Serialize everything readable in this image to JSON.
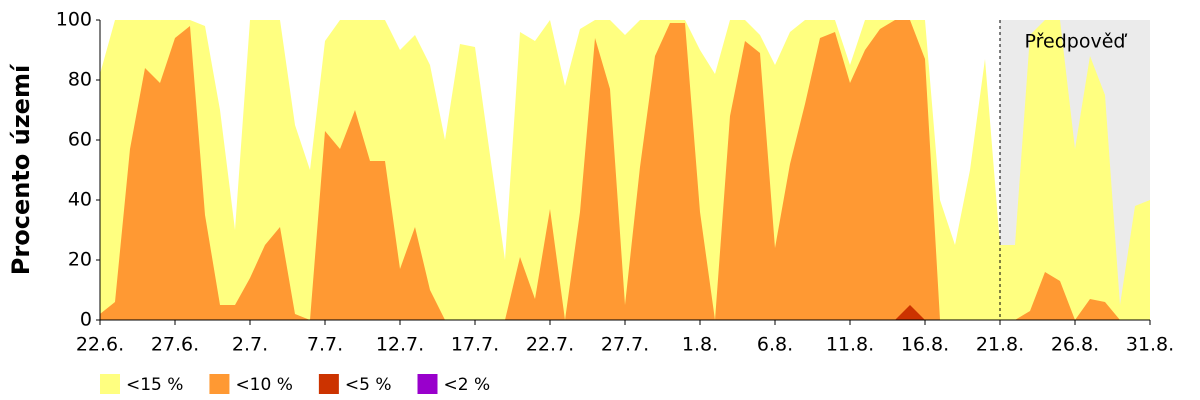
{
  "chart_data": {
    "type": "area",
    "y_label": "Procento území",
    "categories": [
      "22.6.",
      null,
      null,
      null,
      null,
      "27.6.",
      null,
      null,
      null,
      null,
      "2.7.",
      null,
      null,
      null,
      null,
      "7.7.",
      null,
      null,
      null,
      null,
      "12.7.",
      null,
      null,
      null,
      null,
      "17.7.",
      null,
      null,
      null,
      null,
      "22.7.",
      null,
      null,
      null,
      null,
      "27.7.",
      null,
      null,
      null,
      null,
      "1.8.",
      null,
      null,
      null,
      null,
      "6.8.",
      null,
      null,
      null,
      null,
      "11.8.",
      null,
      null,
      null,
      null,
      "16.8.",
      null,
      null,
      null,
      null,
      "21.8.",
      null,
      null,
      null,
      null,
      "26.8.",
      null,
      null,
      null,
      null,
      "31.8."
    ],
    "forecast": {
      "label": "Předpověď",
      "from": "21.8.",
      "color": "#ebebeb"
    },
    "series": [
      {
        "name": "<15 %",
        "color": "#ffff80",
        "values": [
          82,
          100,
          100,
          100,
          100,
          100,
          100,
          98,
          70,
          30,
          100,
          100,
          100,
          65,
          50,
          93,
          100,
          100,
          100,
          100,
          90,
          95,
          85,
          60,
          92,
          91,
          55,
          20,
          96,
          93,
          100,
          78,
          97,
          100,
          100,
          95,
          100,
          100,
          100,
          100,
          90,
          82,
          100,
          100,
          95,
          85,
          96,
          100,
          100,
          100,
          85,
          100,
          100,
          100,
          100,
          100,
          40,
          25,
          50,
          87,
          25,
          25,
          95,
          100,
          100,
          57,
          88,
          75,
          5,
          38,
          40
        ]
      },
      {
        "name": "<10 %",
        "color": "#ff9933",
        "values": [
          2,
          6,
          57,
          84,
          79,
          94,
          98,
          35,
          5,
          5,
          14,
          25,
          31,
          2,
          0,
          63,
          57,
          70,
          53,
          53,
          17,
          31,
          10,
          0,
          0,
          0,
          0,
          0,
          21,
          7,
          37,
          0,
          36,
          94,
          77,
          5,
          51,
          88,
          99,
          99,
          36,
          0,
          68,
          93,
          89,
          24,
          52,
          72,
          94,
          96,
          79,
          90,
          97,
          100,
          100,
          87,
          0,
          0,
          0,
          0,
          0,
          0,
          3,
          16,
          13,
          0,
          7,
          6,
          0,
          0,
          0
        ]
      },
      {
        "name": "<5 %",
        "color": "#cc3300",
        "values": [
          0,
          0,
          0,
          0,
          0,
          0,
          0,
          0,
          0,
          0,
          0,
          0,
          0,
          0,
          0,
          0,
          0,
          0,
          0,
          0,
          0,
          0,
          0,
          0,
          0,
          0,
          0,
          0,
          0,
          0,
          0,
          0,
          0,
          0,
          0,
          0,
          0,
          0,
          0,
          0,
          0,
          0,
          0,
          0,
          0,
          0,
          0,
          0,
          0,
          0,
          0,
          0,
          0,
          0,
          5,
          0,
          0,
          0,
          0,
          0,
          0,
          0,
          0,
          0,
          0,
          0,
          0,
          0,
          0,
          0,
          0
        ]
      },
      {
        "name": "<2 %",
        "color": "#9900cc",
        "values": [
          0,
          0,
          0,
          0,
          0,
          0,
          0,
          0,
          0,
          0,
          0,
          0,
          0,
          0,
          0,
          0,
          0,
          0,
          0,
          0,
          0,
          0,
          0,
          0,
          0,
          0,
          0,
          0,
          0,
          0,
          0,
          0,
          0,
          0,
          0,
          0,
          0,
          0,
          0,
          0,
          0,
          0,
          0,
          0,
          0,
          0,
          0,
          0,
          0,
          0,
          0,
          0,
          0,
          0,
          0,
          0,
          0,
          0,
          0,
          0,
          0,
          0,
          0,
          0,
          0,
          0,
          0,
          0,
          0,
          0,
          0
        ]
      }
    ],
    "ylim": [
      0,
      100
    ],
    "yticks": [
      0,
      20,
      40,
      60,
      80,
      100
    ]
  }
}
